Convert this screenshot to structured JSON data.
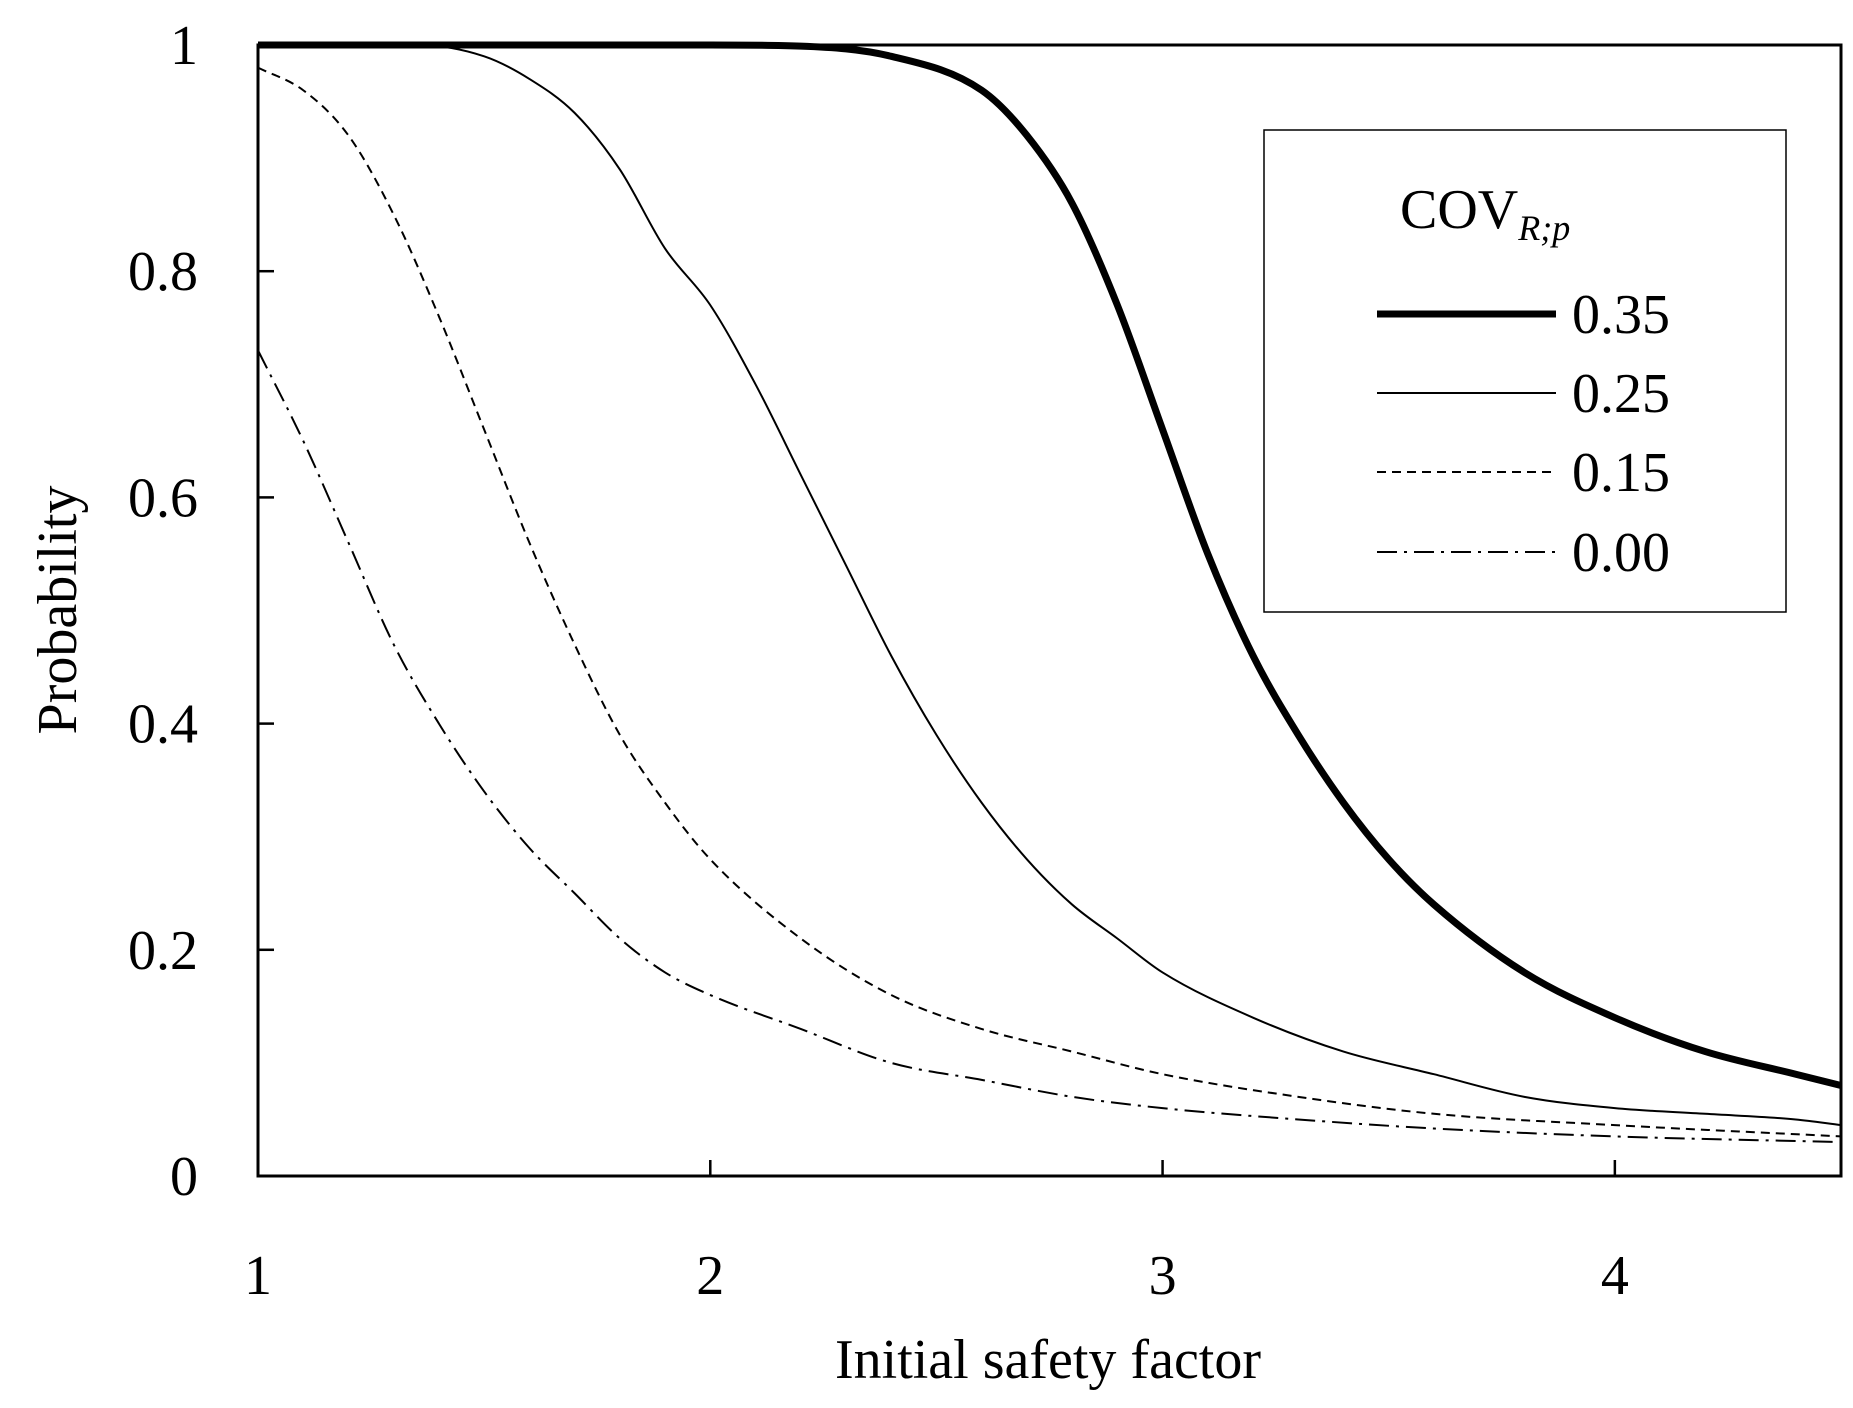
{
  "chart_data": {
    "type": "line",
    "title": "",
    "xlabel": "Initial safety factor",
    "ylabel": "Probability",
    "xlim": [
      1,
      4.5
    ],
    "ylim": [
      0,
      1
    ],
    "xticks": [
      1,
      2,
      3,
      4
    ],
    "yticks": [
      0,
      0.2,
      0.4,
      0.6,
      0.8,
      1
    ],
    "xtick_labels": [
      "1",
      "2",
      "3",
      "4"
    ],
    "ytick_labels": [
      "0",
      "0.2",
      "0.4",
      "0.6",
      "0.8",
      "1"
    ],
    "grid": false,
    "legend": {
      "position": "top-right",
      "title_main": "COV",
      "title_sub": "R;p"
    },
    "series": [
      {
        "name": "0.35",
        "style": "thick-solid",
        "x": [
          1.0,
          1.5,
          1.8,
          2.0,
          2.2,
          2.4,
          2.6,
          2.7,
          2.8,
          2.9,
          3.0,
          3.1,
          3.2,
          3.3,
          3.4,
          3.5,
          3.6,
          3.8,
          4.0,
          4.2,
          4.4,
          4.5
        ],
        "y": [
          1.0,
          1.0,
          1.0,
          1.0,
          0.999,
          0.99,
          0.96,
          0.92,
          0.86,
          0.77,
          0.66,
          0.55,
          0.46,
          0.39,
          0.33,
          0.28,
          0.24,
          0.18,
          0.14,
          0.11,
          0.09,
          0.08
        ]
      },
      {
        "name": "0.25",
        "style": "thin-solid",
        "x": [
          1.0,
          1.2,
          1.35,
          1.5,
          1.6,
          1.7,
          1.8,
          1.9,
          2.0,
          2.1,
          2.2,
          2.3,
          2.4,
          2.5,
          2.6,
          2.7,
          2.8,
          2.9,
          3.0,
          3.2,
          3.4,
          3.6,
          3.8,
          4.0,
          4.2,
          4.4,
          4.5
        ],
        "y": [
          1.0,
          1.0,
          1.0,
          0.99,
          0.97,
          0.94,
          0.89,
          0.82,
          0.77,
          0.7,
          0.62,
          0.54,
          0.46,
          0.39,
          0.33,
          0.28,
          0.24,
          0.21,
          0.18,
          0.14,
          0.11,
          0.09,
          0.07,
          0.06,
          0.055,
          0.05,
          0.045
        ]
      },
      {
        "name": "0.15",
        "style": "dashed",
        "x": [
          1.0,
          1.1,
          1.2,
          1.3,
          1.4,
          1.5,
          1.6,
          1.7,
          1.8,
          1.9,
          2.0,
          2.2,
          2.4,
          2.6,
          2.8,
          3.0,
          3.3,
          3.6,
          4.0,
          4.5
        ],
        "y": [
          0.98,
          0.96,
          0.92,
          0.85,
          0.76,
          0.66,
          0.56,
          0.47,
          0.39,
          0.33,
          0.28,
          0.21,
          0.16,
          0.13,
          0.11,
          0.09,
          0.07,
          0.055,
          0.045,
          0.035
        ]
      },
      {
        "name": "0.00",
        "style": "dash-dot",
        "x": [
          1.0,
          1.1,
          1.2,
          1.3,
          1.4,
          1.5,
          1.6,
          1.7,
          1.8,
          1.9,
          2.0,
          2.2,
          2.4,
          2.6,
          2.8,
          3.0,
          3.3,
          3.6,
          4.0,
          4.5
        ],
        "y": [
          0.73,
          0.65,
          0.56,
          0.47,
          0.4,
          0.34,
          0.29,
          0.25,
          0.21,
          0.18,
          0.16,
          0.13,
          0.1,
          0.085,
          0.07,
          0.06,
          0.05,
          0.042,
          0.035,
          0.03
        ]
      }
    ]
  }
}
